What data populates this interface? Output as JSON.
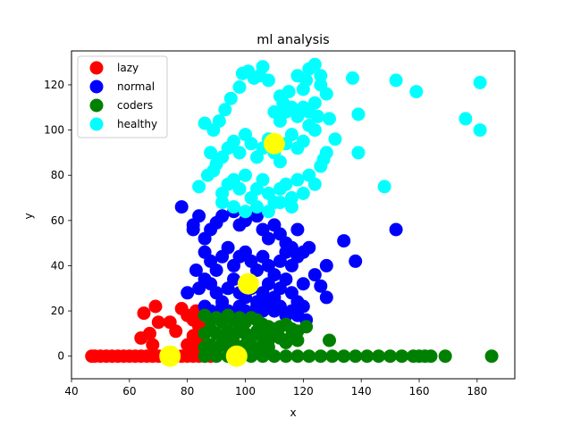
{
  "chart_data": {
    "type": "scatter",
    "title": "ml analysis",
    "xlabel": "x",
    "ylabel": "y",
    "xlim": [
      40,
      193
    ],
    "ylim": [
      -10,
      135
    ],
    "xticks": [
      40,
      60,
      80,
      100,
      120,
      140,
      160,
      180
    ],
    "yticks": [
      0,
      20,
      40,
      60,
      80,
      100,
      120
    ],
    "grid": false,
    "legend": {
      "placement": "top-left"
    },
    "series": [
      {
        "name": "lazy",
        "color": "#ff0000",
        "points": [
          [
            47,
            0
          ],
          [
            48,
            0
          ],
          [
            50,
            0
          ],
          [
            52,
            0
          ],
          [
            54,
            0
          ],
          [
            56,
            0
          ],
          [
            58,
            0
          ],
          [
            60,
            0
          ],
          [
            62,
            0
          ],
          [
            64,
            0
          ],
          [
            66,
            0
          ],
          [
            68,
            0
          ],
          [
            70,
            0
          ],
          [
            72,
            0
          ],
          [
            74,
            0
          ],
          [
            76,
            0
          ],
          [
            78,
            0
          ],
          [
            80,
            0
          ],
          [
            82,
            0
          ],
          [
            84,
            0
          ],
          [
            86,
            0
          ],
          [
            88,
            0
          ],
          [
            65,
            19
          ],
          [
            69,
            22
          ],
          [
            70,
            15
          ],
          [
            64,
            8
          ],
          [
            67,
            10
          ],
          [
            68,
            5
          ],
          [
            74,
            15
          ],
          [
            76,
            11
          ],
          [
            78,
            21
          ],
          [
            80,
            18
          ],
          [
            82,
            16
          ],
          [
            84,
            13
          ],
          [
            85,
            10
          ],
          [
            86,
            12
          ],
          [
            82,
            9
          ],
          [
            84,
            6
          ],
          [
            83,
            3
          ],
          [
            80,
            5
          ],
          [
            85,
            18
          ],
          [
            83,
            20
          ]
        ]
      },
      {
        "name": "normal",
        "color": "#0000ff",
        "points": [
          [
            78,
            66
          ],
          [
            82,
            58
          ],
          [
            84,
            62
          ],
          [
            82,
            56
          ],
          [
            86,
            52
          ],
          [
            88,
            56
          ],
          [
            90,
            59
          ],
          [
            92,
            62
          ],
          [
            96,
            64
          ],
          [
            98,
            58
          ],
          [
            100,
            60
          ],
          [
            104,
            62
          ],
          [
            106,
            56
          ],
          [
            108,
            52
          ],
          [
            110,
            58
          ],
          [
            112,
            54
          ],
          [
            114,
            50
          ],
          [
            116,
            48
          ],
          [
            118,
            56
          ],
          [
            86,
            46
          ],
          [
            88,
            42
          ],
          [
            90,
            38
          ],
          [
            92,
            44
          ],
          [
            94,
            48
          ],
          [
            96,
            40
          ],
          [
            98,
            44
          ],
          [
            100,
            46
          ],
          [
            102,
            42
          ],
          [
            104,
            38
          ],
          [
            106,
            44
          ],
          [
            108,
            40
          ],
          [
            110,
            36
          ],
          [
            112,
            42
          ],
          [
            114,
            46
          ],
          [
            116,
            40
          ],
          [
            118,
            44
          ],
          [
            120,
            46
          ],
          [
            122,
            48
          ],
          [
            124,
            36
          ],
          [
            83,
            38
          ],
          [
            80,
            28
          ],
          [
            84,
            30
          ],
          [
            86,
            34
          ],
          [
            88,
            32
          ],
          [
            90,
            28
          ],
          [
            92,
            24
          ],
          [
            94,
            30
          ],
          [
            96,
            34
          ],
          [
            98,
            28
          ],
          [
            100,
            26
          ],
          [
            102,
            30
          ],
          [
            104,
            24
          ],
          [
            106,
            28
          ],
          [
            108,
            32
          ],
          [
            110,
            26
          ],
          [
            112,
            30
          ],
          [
            114,
            34
          ],
          [
            116,
            28
          ],
          [
            118,
            24
          ],
          [
            120,
            32
          ],
          [
            86,
            22
          ],
          [
            88,
            20
          ],
          [
            90,
            18
          ],
          [
            92,
            22
          ],
          [
            94,
            20
          ],
          [
            96,
            18
          ],
          [
            98,
            22
          ],
          [
            100,
            20
          ],
          [
            102,
            18
          ],
          [
            104,
            22
          ],
          [
            106,
            20
          ],
          [
            108,
            24
          ],
          [
            110,
            20
          ],
          [
            112,
            22
          ],
          [
            114,
            18
          ],
          [
            116,
            20
          ],
          [
            118,
            18
          ],
          [
            120,
            22
          ],
          [
            121,
            16
          ],
          [
            126,
            31
          ],
          [
            128,
            26
          ],
          [
            128,
            40
          ],
          [
            134,
            51
          ],
          [
            138,
            42
          ],
          [
            152,
            56
          ]
        ]
      },
      {
        "name": "coders",
        "color": "#008000",
        "points": [
          [
            86,
            18
          ],
          [
            88,
            16
          ],
          [
            90,
            17
          ],
          [
            92,
            15
          ],
          [
            94,
            18
          ],
          [
            96,
            16
          ],
          [
            98,
            17
          ],
          [
            100,
            15
          ],
          [
            102,
            17
          ],
          [
            104,
            16
          ],
          [
            106,
            14
          ],
          [
            108,
            13
          ],
          [
            110,
            12
          ],
          [
            112,
            13
          ],
          [
            114,
            14
          ],
          [
            116,
            12
          ],
          [
            118,
            11
          ],
          [
            121,
            13
          ],
          [
            86,
            10
          ],
          [
            88,
            12
          ],
          [
            90,
            10
          ],
          [
            92,
            8
          ],
          [
            94,
            11
          ],
          [
            96,
            9
          ],
          [
            98,
            12
          ],
          [
            100,
            10
          ],
          [
            102,
            8
          ],
          [
            104,
            11
          ],
          [
            106,
            9
          ],
          [
            108,
            7
          ],
          [
            110,
            10
          ],
          [
            112,
            8
          ],
          [
            114,
            6
          ],
          [
            116,
            9
          ],
          [
            118,
            7
          ],
          [
            86,
            4
          ],
          [
            88,
            5
          ],
          [
            90,
            3
          ],
          [
            92,
            5
          ],
          [
            94,
            4
          ],
          [
            96,
            6
          ],
          [
            98,
            3
          ],
          [
            100,
            5
          ],
          [
            102,
            4
          ],
          [
            104,
            3
          ],
          [
            106,
            5
          ],
          [
            108,
            4
          ],
          [
            86,
            0
          ],
          [
            90,
            0
          ],
          [
            94,
            0
          ],
          [
            98,
            0
          ],
          [
            102,
            0
          ],
          [
            106,
            0
          ],
          [
            110,
            0
          ],
          [
            114,
            0
          ],
          [
            118,
            0
          ],
          [
            122,
            0
          ],
          [
            126,
            0
          ],
          [
            130,
            0
          ],
          [
            134,
            0
          ],
          [
            138,
            0
          ],
          [
            142,
            0
          ],
          [
            146,
            0
          ],
          [
            150,
            0
          ],
          [
            154,
            0
          ],
          [
            158,
            0
          ],
          [
            160,
            0
          ],
          [
            162,
            0
          ],
          [
            164,
            0
          ],
          [
            169,
            0
          ],
          [
            185,
            0
          ],
          [
            129,
            7
          ]
        ]
      },
      {
        "name": "healthy",
        "color": "#00ffff",
        "points": [
          [
            89,
            100
          ],
          [
            91,
            104
          ],
          [
            93,
            109
          ],
          [
            95,
            114
          ],
          [
            98,
            119
          ],
          [
            99,
            125
          ],
          [
            101,
            126
          ],
          [
            103,
            123
          ],
          [
            105,
            124
          ],
          [
            106,
            128
          ],
          [
            108,
            122
          ],
          [
            112,
            115
          ],
          [
            113,
            112
          ],
          [
            115,
            117
          ],
          [
            118,
            124
          ],
          [
            120,
            118
          ],
          [
            121,
            122
          ],
          [
            122,
            127
          ],
          [
            124,
            129
          ],
          [
            126,
            124
          ],
          [
            126,
            120
          ],
          [
            128,
            116
          ],
          [
            86,
            103
          ],
          [
            88,
            90
          ],
          [
            90,
            85
          ],
          [
            92,
            88
          ],
          [
            94,
            92
          ],
          [
            96,
            95
          ],
          [
            98,
            90
          ],
          [
            100,
            98
          ],
          [
            102,
            94
          ],
          [
            104,
            88
          ],
          [
            106,
            92
          ],
          [
            108,
            96
          ],
          [
            110,
            90
          ],
          [
            112,
            86
          ],
          [
            114,
            94
          ],
          [
            116,
            98
          ],
          [
            118,
            92
          ],
          [
            120,
            95
          ],
          [
            122,
            102
          ],
          [
            124,
            100
          ],
          [
            125,
            106
          ],
          [
            129,
            105
          ],
          [
            84,
            75
          ],
          [
            87,
            80
          ],
          [
            89,
            82
          ],
          [
            92,
            72
          ],
          [
            94,
            76
          ],
          [
            96,
            78
          ],
          [
            98,
            74
          ],
          [
            100,
            80
          ],
          [
            102,
            70
          ],
          [
            104,
            74
          ],
          [
            106,
            78
          ],
          [
            108,
            72
          ],
          [
            110,
            68
          ],
          [
            112,
            74
          ],
          [
            114,
            76
          ],
          [
            116,
            70
          ],
          [
            118,
            78
          ],
          [
            120,
            72
          ],
          [
            122,
            80
          ],
          [
            124,
            76
          ],
          [
            126,
            84
          ],
          [
            127,
            87
          ],
          [
            92,
            68
          ],
          [
            96,
            66
          ],
          [
            100,
            64
          ],
          [
            104,
            66
          ],
          [
            108,
            64
          ],
          [
            112,
            68
          ],
          [
            116,
            66
          ],
          [
            110,
            108
          ],
          [
            112,
            104
          ],
          [
            114,
            108
          ],
          [
            116,
            110
          ],
          [
            118,
            106
          ],
          [
            120,
            110
          ],
          [
            122,
            108
          ],
          [
            124,
            112
          ],
          [
            128,
            90
          ],
          [
            131,
            96
          ],
          [
            137,
            123
          ],
          [
            139,
            107
          ],
          [
            139,
            90
          ],
          [
            148,
            75
          ],
          [
            152,
            122
          ],
          [
            159,
            117
          ],
          [
            176,
            105
          ],
          [
            181,
            121
          ],
          [
            181,
            100
          ]
        ]
      }
    ],
    "centroids": {
      "color": "#ffff00",
      "points": [
        [
          74,
          0
        ],
        [
          97,
          0
        ],
        [
          101,
          32
        ],
        [
          110,
          94
        ]
      ]
    }
  }
}
